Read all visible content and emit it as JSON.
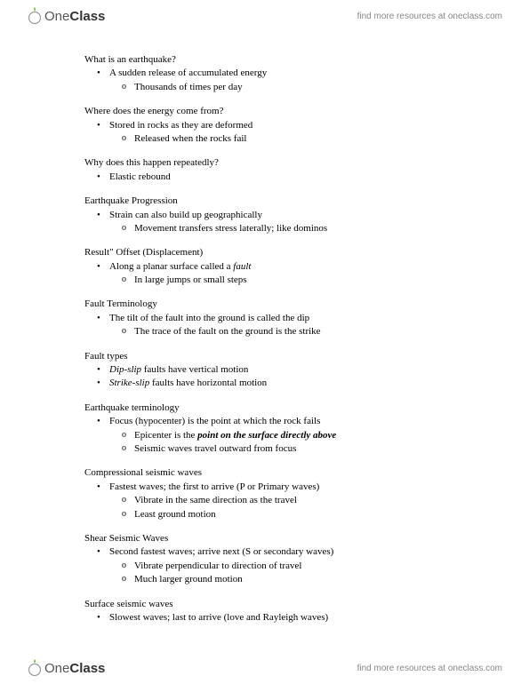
{
  "brand": {
    "name_part1": "One",
    "name_part2": "Class",
    "tagline": "find more resources at oneclass.com",
    "leaf_color": "#7fbf3f"
  },
  "sections": [
    {
      "title": "What is an earthquake?",
      "bullets": [
        {
          "text": "A sudden release of accumulated energy",
          "sub": [
            "Thousands of times per day"
          ]
        }
      ]
    },
    {
      "title": "Where does the energy come from?",
      "bullets": [
        {
          "text": "Stored in rocks as they are deformed",
          "sub": [
            "Released when the rocks fail"
          ]
        }
      ]
    },
    {
      "title": "Why does this happen repeatedly?",
      "bullets": [
        {
          "text": "Elastic rebound",
          "sub": []
        }
      ]
    },
    {
      "title": "Earthquake Progression",
      "bullets": [
        {
          "text": "Strain can also build up geographically",
          "sub": [
            "Movement transfers stress laterally; like dominos"
          ]
        }
      ]
    },
    {
      "title": "Result\" Offset (Displacement)",
      "bullets": [
        {
          "text_html": "Along a planar surface called a <span class=\"italic\">fault</span>",
          "sub": [
            "In large jumps or small steps"
          ]
        }
      ]
    },
    {
      "title": "Fault Terminology",
      "bullets": [
        {
          "text": "The tilt of the fault into the ground is called the dip",
          "sub": [
            "The trace of the fault on the ground is the strike"
          ]
        }
      ]
    },
    {
      "title": "Fault types",
      "bullets": [
        {
          "text_html": "<span class=\"italic\">Dip-slip</span> faults have vertical motion",
          "sub": []
        },
        {
          "text_html": "<span class=\"italic\">Strike-slip</span> faults have horizontal motion",
          "sub": []
        }
      ]
    },
    {
      "title": "Earthquake terminology",
      "bullets": [
        {
          "text": "Focus (hypocenter) is the point at which the rock fails",
          "sub_html": [
            "Epicenter is the <span class=\"bold-italic\">point on the surface directly above</span>",
            "Seismic waves travel outward from focus"
          ]
        }
      ]
    },
    {
      "title": "Compressional seismic waves",
      "bullets": [
        {
          "text": "Fastest waves; the first to arrive (P or Primary waves)",
          "sub": [
            "Vibrate in the same direction as the travel",
            "Least ground motion"
          ]
        }
      ]
    },
    {
      "title": "Shear Seismic Waves",
      "bullets": [
        {
          "text": "Second fastest waves; arrive next (S or secondary waves)",
          "sub": [
            "Vibrate perpendicular to direction of travel",
            "Much larger ground motion"
          ]
        }
      ]
    },
    {
      "title": "Surface seismic waves",
      "bullets": [
        {
          "text": "Slowest waves; last to arrive (love and Rayleigh waves)",
          "sub": []
        }
      ]
    }
  ]
}
